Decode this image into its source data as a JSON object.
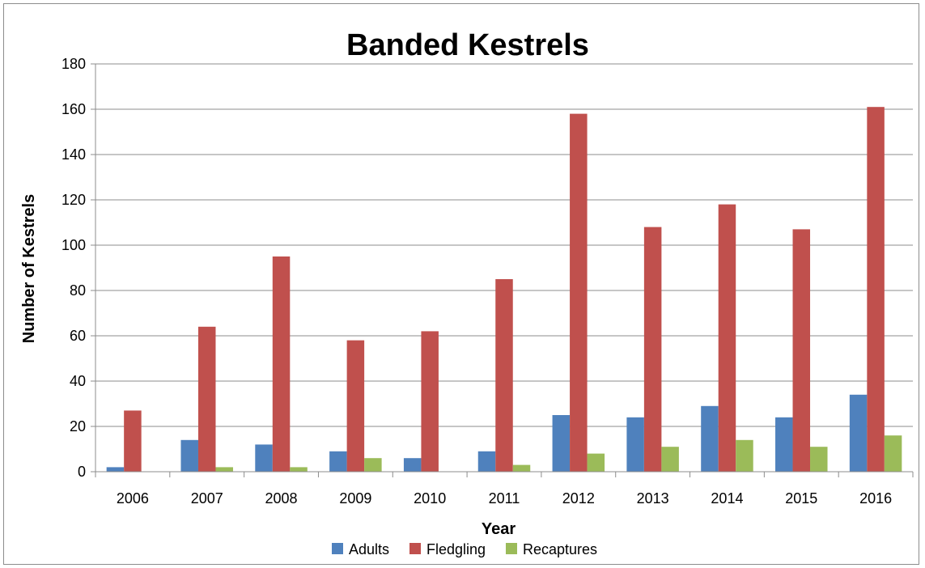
{
  "chart_data": {
    "type": "bar",
    "title": "Banded Kestrels",
    "xlabel": "Year",
    "ylabel": "Number of Kestrels",
    "categories": [
      "2006",
      "2007",
      "2008",
      "2009",
      "2010",
      "2011",
      "2012",
      "2013",
      "2014",
      "2015",
      "2016"
    ],
    "ylim": [
      0,
      180
    ],
    "yticks": [
      0,
      20,
      40,
      60,
      80,
      100,
      120,
      140,
      160,
      180
    ],
    "grid": true,
    "legend_position": "bottom",
    "series": [
      {
        "name": "Adults",
        "color": "#4f81bd",
        "values": [
          2,
          14,
          12,
          9,
          6,
          9,
          25,
          24,
          29,
          24,
          34
        ]
      },
      {
        "name": "Fledgling",
        "color": "#c0504d",
        "values": [
          27,
          64,
          95,
          58,
          62,
          85,
          158,
          108,
          118,
          107,
          161
        ]
      },
      {
        "name": "Recaptures",
        "color": "#9bbb59",
        "values": [
          0,
          2,
          2,
          6,
          0,
          3,
          8,
          11,
          14,
          11,
          16
        ]
      }
    ]
  }
}
